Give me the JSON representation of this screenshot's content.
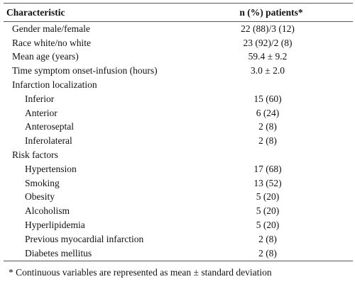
{
  "table": {
    "headers": {
      "characteristic": "Characteristic",
      "n_patients": "n (%) patients*"
    },
    "rows": [
      {
        "label": "Gender male/female",
        "value": "22 (88)/3 (12)",
        "indent": false
      },
      {
        "label": "Race white/no white",
        "value": "23 (92)/2 (8)",
        "indent": false
      },
      {
        "label": "Mean age (years)",
        "value": "59.4 ± 9.2",
        "indent": false
      },
      {
        "label": "Time symptom onset-infusion (hours)",
        "value": "3.0 ± 2.0",
        "indent": false
      },
      {
        "label": "Infarction localization",
        "value": "",
        "indent": false
      },
      {
        "label": "Inferior",
        "value": "15 (60)",
        "indent": true
      },
      {
        "label": "Anterior",
        "value": "6 (24)",
        "indent": true
      },
      {
        "label": "Anteroseptal",
        "value": "2 (8)",
        "indent": true
      },
      {
        "label": "Inferolateral",
        "value": "2 (8)",
        "indent": true
      },
      {
        "label": "Risk factors",
        "value": "",
        "indent": false
      },
      {
        "label": "Hypertension",
        "value": "17 (68)",
        "indent": true
      },
      {
        "label": "Smoking",
        "value": "13 (52)",
        "indent": true
      },
      {
        "label": "Obesity",
        "value": "5 (20)",
        "indent": true
      },
      {
        "label": "Alcoholism",
        "value": "5 (20)",
        "indent": true
      },
      {
        "label": "Hyperlipidemia",
        "value": "5 (20)",
        "indent": true
      },
      {
        "label": "Previous myocardial infarction",
        "value": "2 (8)",
        "indent": true
      },
      {
        "label": "Diabetes mellitus",
        "value": "2 (8)",
        "indent": true
      }
    ]
  },
  "footnote": "* Continuous variables are represented as mean ± standard deviation"
}
